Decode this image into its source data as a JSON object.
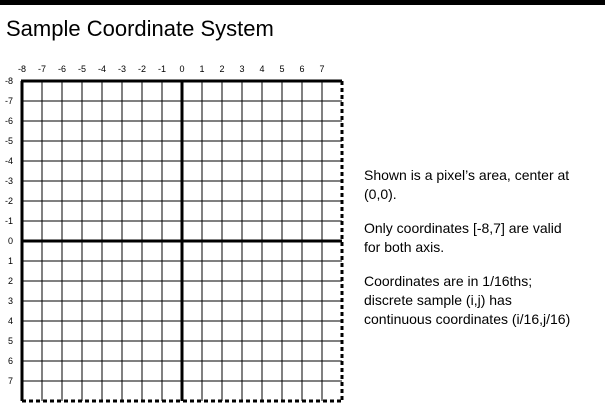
{
  "title": "Sample Coordinate System",
  "axis": {
    "x_ticks": [
      "-8",
      "-7",
      "-6",
      "-5",
      "-4",
      "-3",
      "-2",
      "-1",
      "0",
      "1",
      "2",
      "3",
      "4",
      "5",
      "6",
      "7"
    ],
    "y_ticks": [
      "-8",
      "-7",
      "-6",
      "-5",
      "-4",
      "-3",
      "-2",
      "-1",
      "0",
      "1",
      "2",
      "3",
      "4",
      "5",
      "6",
      "7"
    ],
    "origin_label": "0"
  },
  "notes": [
    "Shown is a pixel’s area, center at\n(0,0).",
    "Only coordinates [-8,7] are valid\nfor both axis.",
    "Coordinates are in 1/16ths;\ndiscrete sample (i,j) has\ncontinuous coordinates (i/16,j/16)"
  ]
}
